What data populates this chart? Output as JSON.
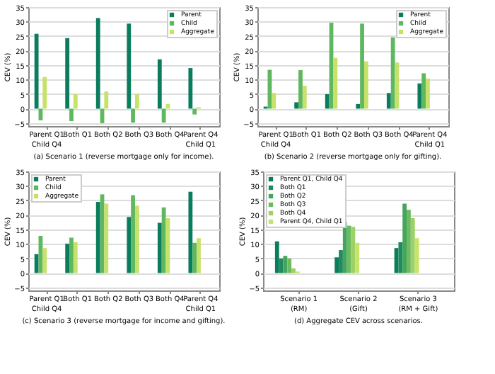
{
  "chart_data": [
    {
      "type": "bar",
      "title": "(a) Scenario 1 (reverse mortgage only for income).",
      "ylabel": "CEV (%)",
      "categories": [
        "Parent Q1\nChild Q4",
        "Both Q1",
        "Both Q2",
        "Both Q3",
        "Both Q4",
        "Parent Q4\nChild Q1"
      ],
      "series": [
        {
          "name": "Parent",
          "color": "#0b7d5e",
          "values": [
            25.8,
            24.3,
            31.2,
            29.3,
            17,
            14
          ]
        },
        {
          "name": "Child",
          "color": "#5fb860",
          "values": [
            -4,
            -4.3,
            -5,
            -4.8,
            -4.8,
            -2
          ]
        },
        {
          "name": "Aggregate",
          "color": "#c6e26a",
          "values": [
            10.9,
            5,
            5.9,
            5,
            1.6,
            0.5
          ]
        }
      ],
      "ylim": [
        -6,
        35
      ],
      "yticks": [
        -5,
        0,
        5,
        10,
        15,
        20,
        25,
        30,
        35
      ],
      "grid": "y",
      "legend": "top right"
    },
    {
      "type": "bar",
      "title": "(b) Scenario 2 (reverse mortgage only for gifting).",
      "ylabel": "CEV (%)",
      "categories": [
        "Parent Q1\nChild Q4",
        "Both Q1",
        "Both Q2",
        "Both Q3",
        "Both Q4",
        "Parent Q4\nChild Q1"
      ],
      "series": [
        {
          "name": "Parent",
          "color": "#0b7d5e",
          "values": [
            0.7,
            2.2,
            5,
            1.6,
            5.4,
            8.7
          ]
        },
        {
          "name": "Child",
          "color": "#5fb860",
          "values": [
            13.4,
            13.3,
            29.6,
            29.3,
            24.6,
            12.2
          ]
        },
        {
          "name": "Aggregate",
          "color": "#c6e26a",
          "values": [
            5.4,
            7.9,
            17.5,
            16.3,
            15.9,
            10.4
          ]
        }
      ],
      "ylim": [
        -6,
        35
      ],
      "yticks": [
        -5,
        0,
        5,
        10,
        15,
        20,
        25,
        30,
        35
      ],
      "grid": "y",
      "legend": "top right"
    },
    {
      "type": "bar",
      "title": "(c) Scenario 3 (reverse mortgage for income and gifting).",
      "ylabel": "CEV (%)",
      "categories": [
        "Parent Q1\nChild Q4",
        "Both Q1",
        "Both Q2",
        "Both Q3",
        "Both Q4",
        "Parent Q4\nChild Q1"
      ],
      "series": [
        {
          "name": "Parent",
          "color": "#0b7d5e",
          "values": [
            6.5,
            10.1,
            24.5,
            19.3,
            17.3,
            28
          ]
        },
        {
          "name": "Child",
          "color": "#5fb860",
          "values": [
            12.8,
            12.2,
            27.1,
            26.8,
            22.6,
            10.4
          ]
        },
        {
          "name": "Aggregate",
          "color": "#c6e26a",
          "values": [
            8.6,
            10.6,
            23.9,
            23.2,
            18.9,
            12
          ]
        }
      ],
      "ylim": [
        -6,
        35
      ],
      "yticks": [
        -5,
        0,
        5,
        10,
        15,
        20,
        25,
        30,
        35
      ],
      "grid": "y",
      "legend": "top left"
    },
    {
      "type": "bar",
      "title": "(d) Aggregate CEV across scenarios.",
      "ylabel": "CEV (%)",
      "categories": [
        "Scenario 1\n(RM)",
        "Scenario 2\n(Gift)",
        "Scenario 3\n(RM + Gift)"
      ],
      "series": [
        {
          "name": "Parent Q1, Child Q4",
          "color": "#0b7d5e",
          "values": [
            10.9,
            5.4,
            8.6
          ]
        },
        {
          "name": "Both Q1",
          "color": "#1f8c5b",
          "values": [
            5,
            7.9,
            10.6
          ]
        },
        {
          "name": "Both Q2",
          "color": "#45a55c",
          "values": [
            5.9,
            17.5,
            23.9
          ]
        },
        {
          "name": "Both Q3",
          "color": "#6dbb5f",
          "values": [
            5,
            16.3,
            21.8
          ]
        },
        {
          "name": "Both Q4",
          "color": "#9bd165",
          "values": [
            1.6,
            15.9,
            18.9
          ]
        },
        {
          "name": "Parent Q4, Child Q1",
          "color": "#c7e46a",
          "values": [
            0.5,
            10.4,
            12
          ]
        }
      ],
      "ylim": [
        -6,
        35
      ],
      "yticks": [
        -5,
        0,
        5,
        10,
        15,
        20,
        25,
        30,
        35
      ],
      "grid": "y",
      "legend": "top left"
    }
  ]
}
